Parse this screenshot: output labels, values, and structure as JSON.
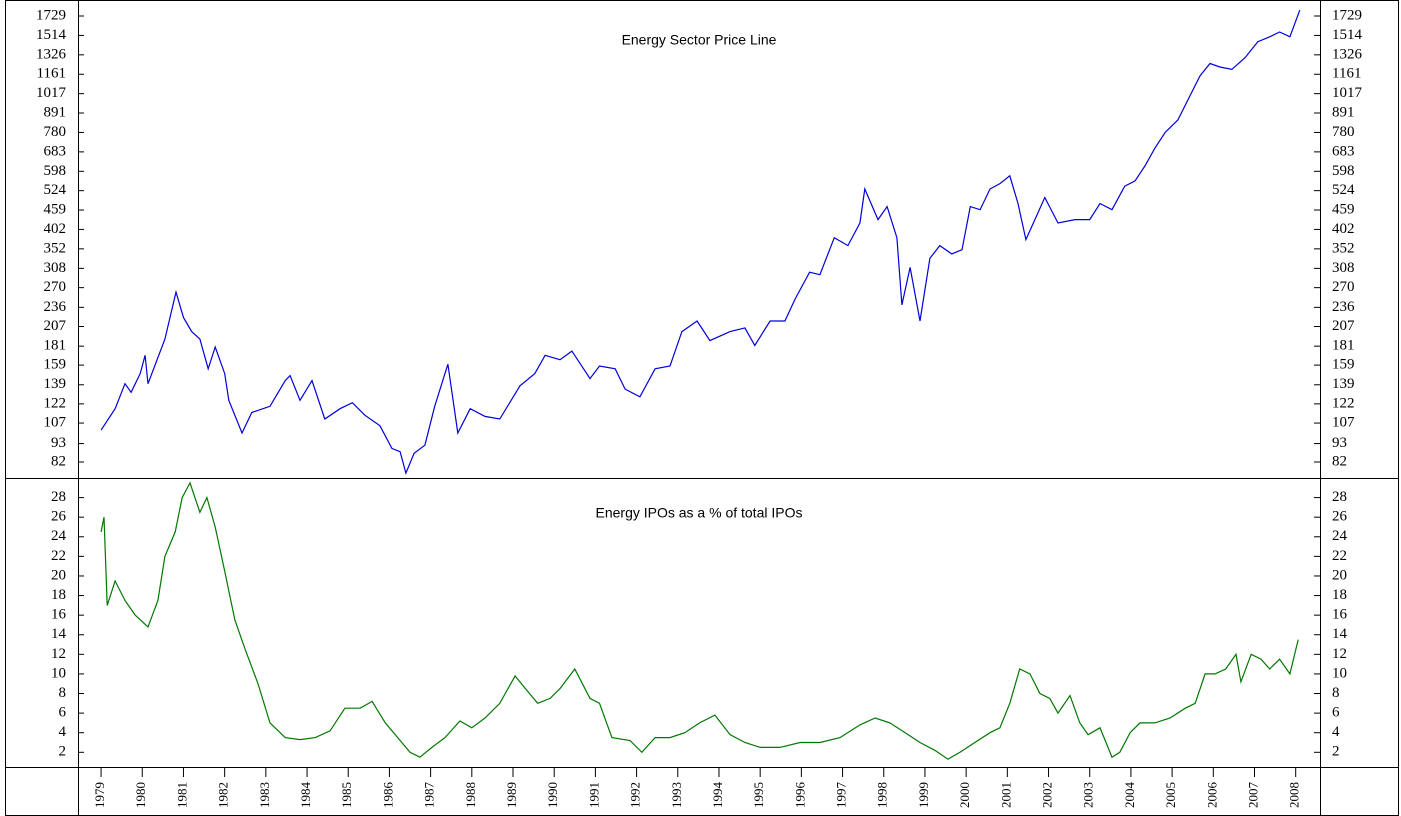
{
  "chart_data": [
    {
      "type": "line",
      "title": "Energy Sector Price Line",
      "color": "#0000dd",
      "log_scale": true,
      "ylim": [
        73.5,
        1864
      ],
      "yticks": [
        82,
        93,
        107,
        122,
        139,
        159,
        181,
        207,
        236,
        270,
        308,
        352,
        402,
        459,
        524,
        598,
        683,
        780,
        891,
        1017,
        1161,
        1326,
        1514,
        1729
      ],
      "xlim": [
        1978.44,
        2008.59
      ],
      "x": [
        1979.0,
        1979.34,
        1979.58,
        1979.73,
        1979.95,
        1980.07,
        1980.14,
        1980.55,
        1980.82,
        1981.0,
        1981.2,
        1981.4,
        1981.6,
        1981.77,
        1982.0,
        1982.1,
        1982.42,
        1982.66,
        1983.1,
        1983.47,
        1983.59,
        1983.83,
        1984.12,
        1984.43,
        1984.8,
        1985.1,
        1985.4,
        1985.77,
        1986.06,
        1986.26,
        1986.4,
        1986.6,
        1986.86,
        1987.1,
        1987.42,
        1987.66,
        1987.96,
        1988.32,
        1988.68,
        1989.17,
        1989.53,
        1989.78,
        1990.14,
        1990.43,
        1990.87,
        1991.1,
        1991.48,
        1991.72,
        1992.08,
        1992.45,
        1992.81,
        1993.1,
        1993.47,
        1993.78,
        1994.27,
        1994.63,
        1994.87,
        1995.24,
        1995.6,
        1995.85,
        1996.2,
        1996.45,
        1996.8,
        1997.13,
        1997.42,
        1997.54,
        1997.86,
        1998.08,
        1998.32,
        1998.44,
        1998.64,
        1998.88,
        1999.12,
        1999.36,
        1999.65,
        1999.9,
        2000.1,
        2000.34,
        2000.58,
        2000.82,
        2001.06,
        2001.26,
        2001.45,
        2001.67,
        2001.91,
        2002.23,
        2002.64,
        2003.0,
        2003.25,
        2003.54,
        2003.85,
        2004.1,
        2004.34,
        2004.58,
        2004.83,
        2005.14,
        2005.43,
        2005.68,
        2005.92,
        2006.16,
        2006.45,
        2006.77,
        2007.08,
        2007.37,
        2007.61,
        2007.86,
        2008.1
      ],
      "values": [
        102,
        118,
        140,
        132,
        150,
        170,
        140,
        190,
        262,
        220,
        200,
        190,
        155,
        180,
        150,
        125,
        100,
        115,
        120,
        143,
        148,
        125,
        143,
        110,
        118,
        123,
        113,
        105,
        90,
        88,
        76,
        87,
        92,
        120,
        160,
        100,
        118,
        112,
        110,
        138,
        150,
        170,
        165,
        175,
        145,
        158,
        155,
        135,
        128,
        155,
        158,
        200,
        215,
        188,
        200,
        205,
        182,
        215,
        215,
        250,
        300,
        295,
        380,
        360,
        420,
        530,
        430,
        470,
        380,
        240,
        310,
        215,
        330,
        360,
        340,
        350,
        470,
        460,
        530,
        550,
        580,
        480,
        375,
        430,
        500,
        420,
        430,
        430,
        480,
        460,
        540,
        560,
        620,
        700,
        780,
        850,
        1000,
        1150,
        1250,
        1220,
        1200,
        1300,
        1450,
        1500,
        1550,
        1500,
        1800
      ]
    },
    {
      "type": "line",
      "title": "Energy IPOs as a % of total IPOs",
      "color": "#007700",
      "log_scale": false,
      "ylim": [
        0.5,
        30
      ],
      "yticks": [
        2,
        4,
        6,
        8,
        10,
        12,
        14,
        16,
        18,
        20,
        22,
        24,
        26,
        28
      ],
      "xlim": [
        1978.44,
        2008.59
      ],
      "xticks": [
        1979,
        1980,
        1981,
        1982,
        1983,
        1984,
        1985,
        1986,
        1987,
        1988,
        1989,
        1990,
        1991,
        1992,
        1993,
        1994,
        1995,
        1996,
        1997,
        1998,
        1999,
        2000,
        2001,
        2002,
        2003,
        2004,
        2005,
        2006,
        2007,
        2008
      ],
      "x": [
        1979.0,
        1979.07,
        1979.15,
        1979.34,
        1979.58,
        1979.83,
        1980.14,
        1980.38,
        1980.55,
        1980.8,
        1980.97,
        1981.16,
        1981.4,
        1981.57,
        1981.77,
        1982.0,
        1982.25,
        1982.5,
        1982.81,
        1983.1,
        1983.47,
        1983.83,
        1984.2,
        1984.56,
        1984.92,
        1985.29,
        1985.58,
        1985.9,
        1986.2,
        1986.5,
        1986.74,
        1987.03,
        1987.35,
        1987.71,
        1988.0,
        1988.32,
        1988.68,
        1989.05,
        1989.3,
        1989.6,
        1989.9,
        1990.14,
        1990.5,
        1990.87,
        1991.1,
        1991.4,
        1991.84,
        1992.13,
        1992.45,
        1992.81,
        1993.17,
        1993.53,
        1993.9,
        1994.27,
        1994.63,
        1995.0,
        1995.48,
        1995.97,
        1996.45,
        1996.94,
        1997.42,
        1997.79,
        1998.15,
        1998.52,
        1998.88,
        1999.24,
        1999.56,
        1999.85,
        2000.21,
        2000.58,
        2000.82,
        2001.06,
        2001.3,
        2001.55,
        2001.79,
        2002.03,
        2002.23,
        2002.52,
        2002.76,
        2002.96,
        2003.25,
        2003.54,
        2003.73,
        2003.98,
        2004.22,
        2004.58,
        2004.95,
        2005.32,
        2005.56,
        2005.8,
        2006.04,
        2006.3,
        2006.55,
        2006.67,
        2006.92,
        2007.16,
        2007.37,
        2007.61,
        2007.86,
        2008.06
      ],
      "values": [
        24.5,
        26,
        17,
        19.5,
        17.5,
        16,
        14.8,
        17.5,
        22,
        24.5,
        28,
        29.5,
        26.5,
        28,
        25,
        20.5,
        15.5,
        12.5,
        9,
        5,
        3.5,
        3.3,
        3.5,
        4.2,
        6.5,
        6.5,
        7.2,
        5,
        3.5,
        2,
        1.5,
        2.5,
        3.5,
        5.2,
        4.5,
        5.5,
        7,
        9.8,
        8.5,
        7,
        7.5,
        8.5,
        10.5,
        7.5,
        7,
        3.5,
        3.2,
        2,
        3.5,
        3.5,
        4,
        5,
        5.8,
        3.8,
        3,
        2.5,
        2.5,
        3,
        3,
        3.5,
        4.8,
        5.5,
        5,
        4,
        3,
        2.2,
        1.3,
        2,
        3,
        4,
        4.5,
        7,
        10.5,
        10,
        8,
        7.5,
        6,
        7.8,
        5,
        3.8,
        4.5,
        1.5,
        2,
        4,
        5,
        5,
        5.5,
        6.5,
        7,
        10,
        10,
        10.5,
        12,
        9.2,
        12,
        11.5,
        10.5,
        11.5,
        10,
        13.5
      ]
    }
  ]
}
